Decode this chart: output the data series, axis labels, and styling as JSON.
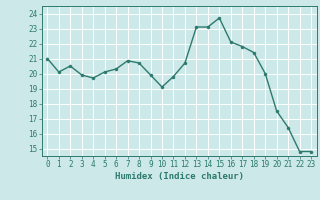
{
  "x": [
    0,
    1,
    2,
    3,
    4,
    5,
    6,
    7,
    8,
    9,
    10,
    11,
    12,
    13,
    14,
    15,
    16,
    17,
    18,
    19,
    20,
    21,
    22,
    23
  ],
  "y": [
    21.0,
    20.1,
    20.5,
    19.9,
    19.7,
    20.1,
    20.3,
    20.85,
    20.7,
    19.9,
    19.1,
    19.8,
    20.7,
    23.1,
    23.1,
    23.7,
    22.1,
    21.8,
    21.4,
    20.0,
    17.5,
    16.4,
    14.8,
    14.8
  ],
  "bg_color": "#cce8e8",
  "grid_color": "#ffffff",
  "line_color": "#2d7a6e",
  "marker_color": "#2d7a6e",
  "xlabel": "Humidex (Indice chaleur)",
  "ylim": [
    14.5,
    24.5
  ],
  "xlim": [
    -0.5,
    23.5
  ],
  "yticks": [
    15,
    16,
    17,
    18,
    19,
    20,
    21,
    22,
    23,
    24
  ],
  "xticks": [
    0,
    1,
    2,
    3,
    4,
    5,
    6,
    7,
    8,
    9,
    10,
    11,
    12,
    13,
    14,
    15,
    16,
    17,
    18,
    19,
    20,
    21,
    22,
    23
  ],
  "tick_fontsize": 5.5,
  "xlabel_fontsize": 6.5,
  "line_width": 1.0,
  "marker_size": 2.2
}
